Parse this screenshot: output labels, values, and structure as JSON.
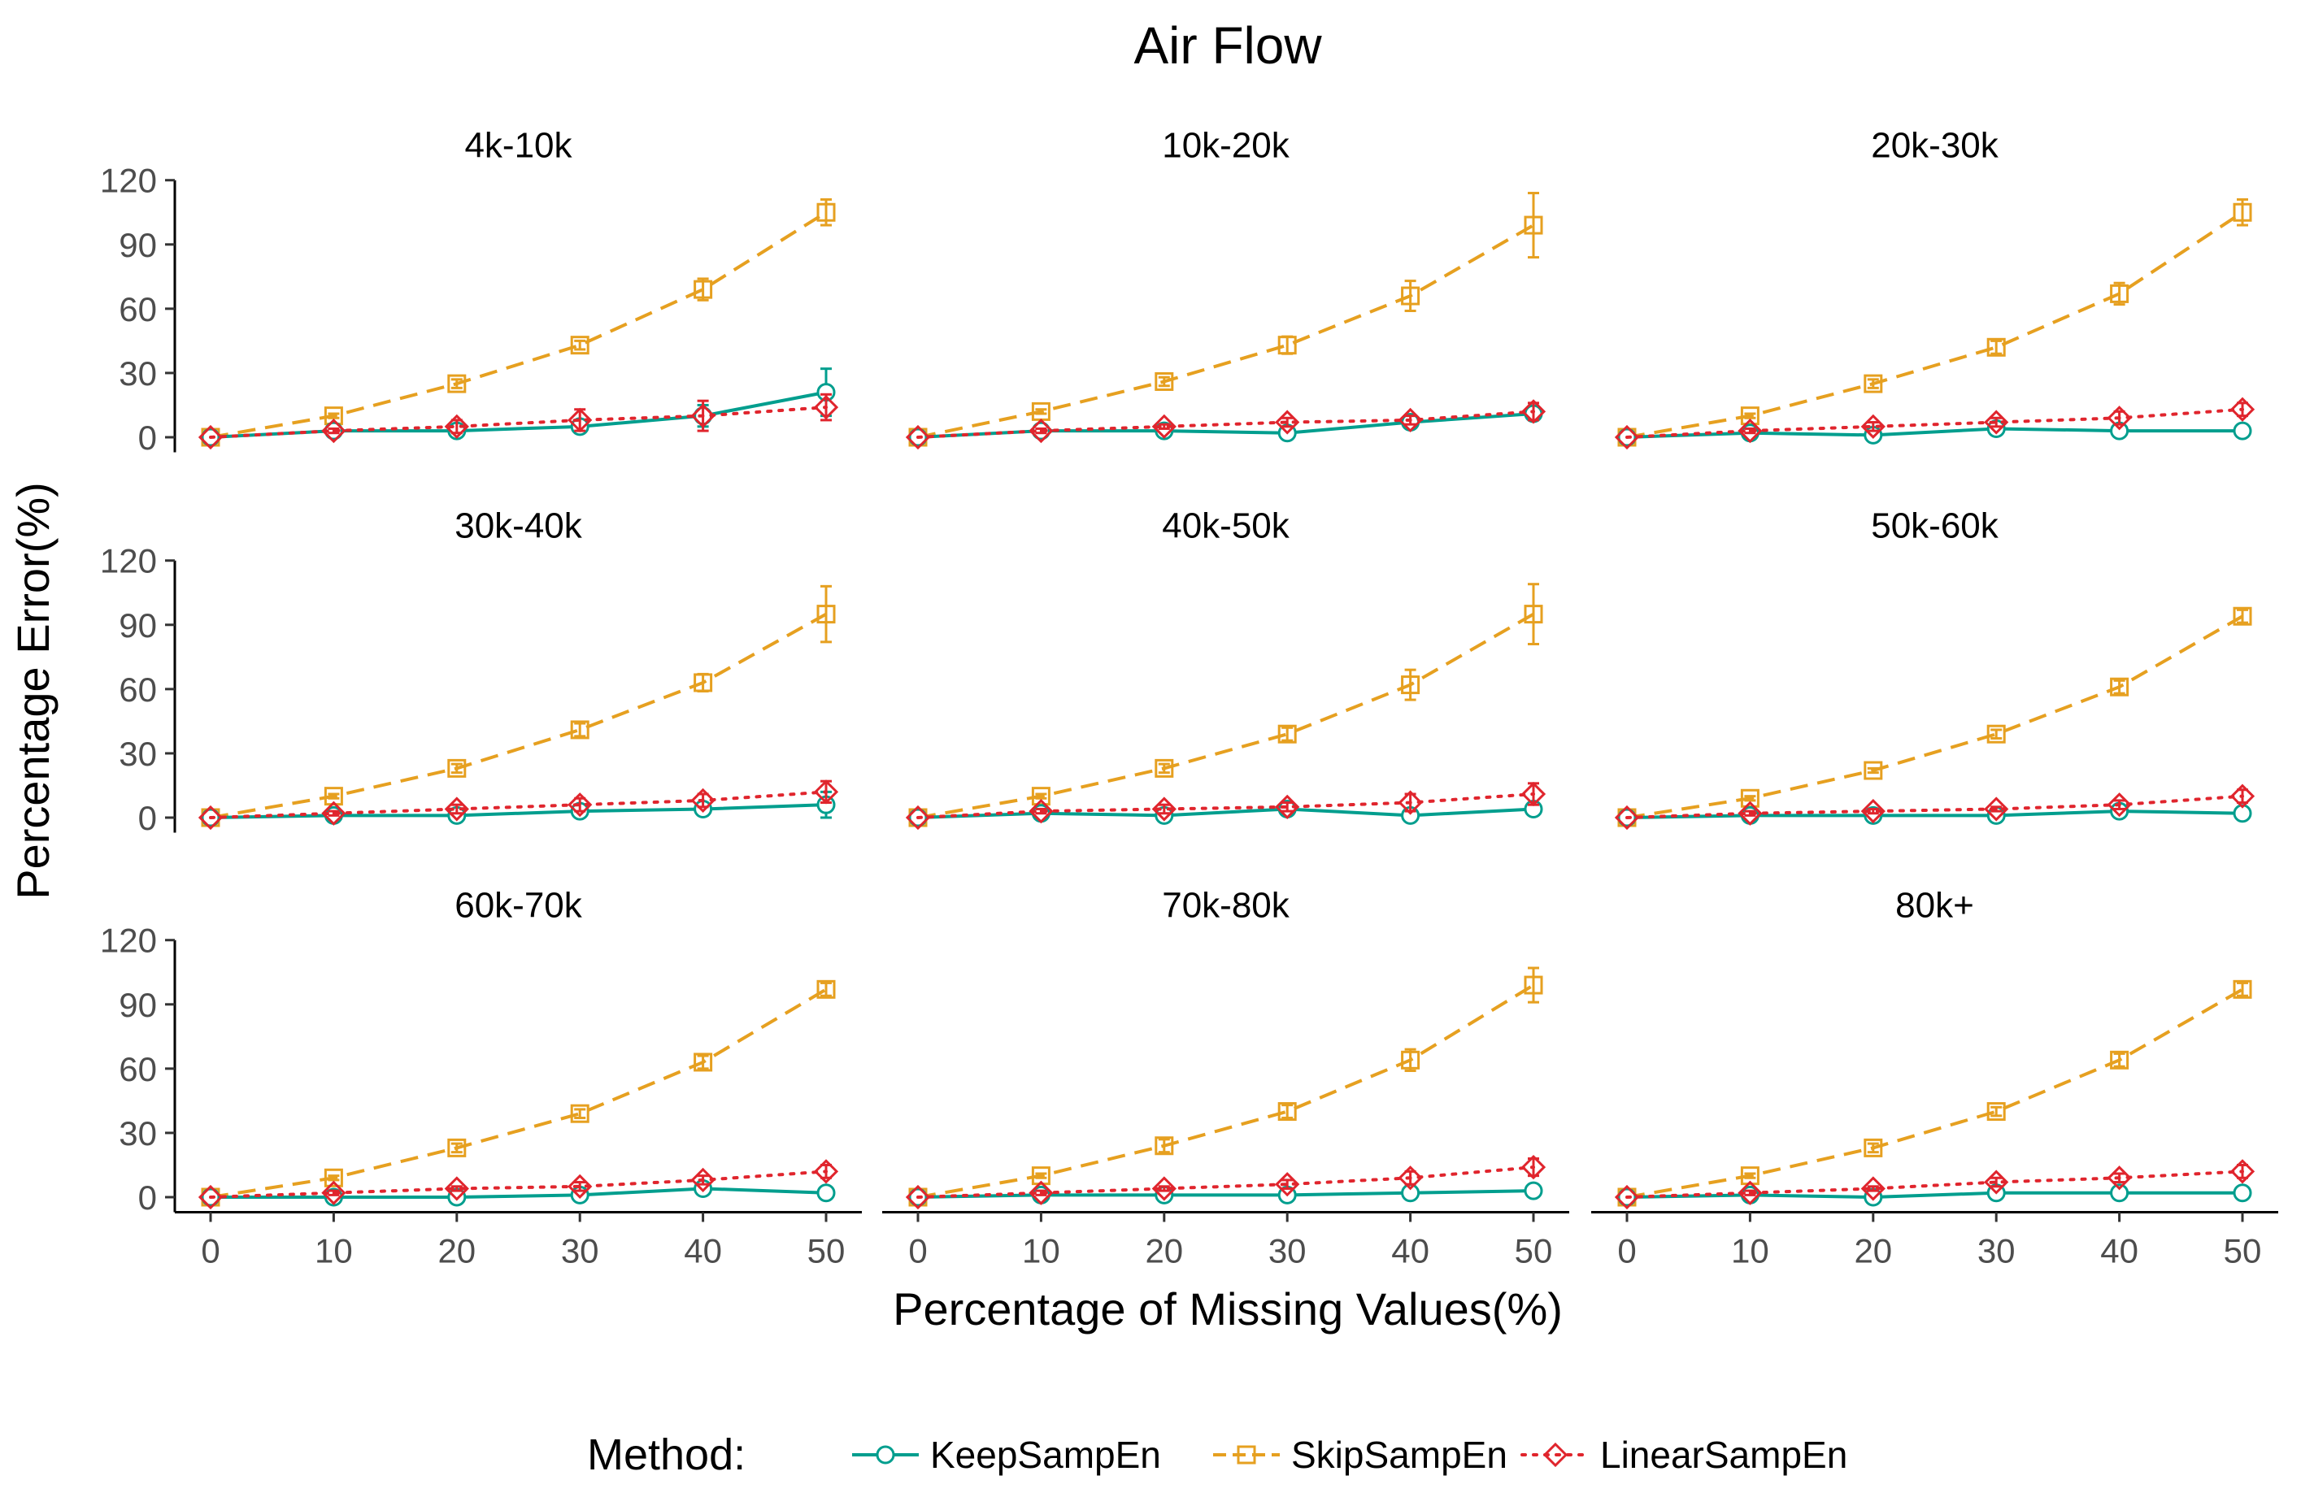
{
  "chart_data": {
    "type": "line",
    "title": "Air Flow",
    "xlabel": "Percentage of Missing Values(%)",
    "ylabel": "Percentage Error(%)",
    "x": [
      0,
      10,
      20,
      30,
      40,
      50
    ],
    "xticks": [
      0,
      10,
      20,
      30,
      40,
      50
    ],
    "yticks": [
      0,
      30,
      60,
      90,
      120
    ],
    "xlim": [
      -3,
      53
    ],
    "ylim": [
      -7,
      122
    ],
    "legend": {
      "title": "Method:",
      "position": "bottom",
      "entries": [
        "KeepSampEn",
        "SkipSampEn",
        "LinearSampEn"
      ]
    },
    "series_styles": [
      {
        "name": "KeepSampEn",
        "color": "#009E8E",
        "dash": "solid",
        "marker": "circle"
      },
      {
        "name": "SkipSampEn",
        "color": "#E6A020",
        "dash": "dashed",
        "marker": "square"
      },
      {
        "name": "LinearSampEn",
        "color": "#E0252D",
        "dash": "dotted",
        "marker": "diamond"
      }
    ],
    "panels": [
      {
        "title": "4k-10k",
        "series": [
          {
            "name": "KeepSampEn",
            "values": [
              0,
              3,
              3,
              5,
              10,
              21
            ],
            "errors": [
              0,
              1,
              1,
              2,
              5,
              11
            ]
          },
          {
            "name": "SkipSampEn",
            "values": [
              0,
              10,
              25,
              43,
              69,
              105
            ],
            "errors": [
              0,
              1,
              2,
              2,
              5,
              6
            ]
          },
          {
            "name": "LinearSampEn",
            "values": [
              0,
              3,
              5,
              8,
              10,
              14
            ],
            "errors": [
              0,
              1,
              3,
              5,
              7,
              6
            ]
          }
        ]
      },
      {
        "title": "10k-20k",
        "series": [
          {
            "name": "KeepSampEn",
            "values": [
              0,
              3,
              3,
              2,
              7,
              11
            ],
            "errors": [
              0,
              1,
              1,
              1,
              2,
              3
            ]
          },
          {
            "name": "SkipSampEn",
            "values": [
              0,
              12,
              26,
              43,
              66,
              99
            ],
            "errors": [
              0,
              1,
              2,
              4,
              7,
              15
            ]
          },
          {
            "name": "LinearSampEn",
            "values": [
              0,
              3,
              5,
              7,
              8,
              12
            ],
            "errors": [
              0,
              1,
              1,
              2,
              2,
              4
            ]
          }
        ]
      },
      {
        "title": "20k-30k",
        "series": [
          {
            "name": "KeepSampEn",
            "values": [
              0,
              2,
              1,
              4,
              3,
              3
            ],
            "errors": [
              0,
              1,
              1,
              1,
              1,
              1
            ]
          },
          {
            "name": "SkipSampEn",
            "values": [
              0,
              10,
              25,
              42,
              67,
              105
            ],
            "errors": [
              0,
              1,
              2,
              3,
              5,
              6
            ]
          },
          {
            "name": "LinearSampEn",
            "values": [
              0,
              3,
              5,
              7,
              9,
              13
            ],
            "errors": [
              0,
              1,
              2,
              2,
              3,
              3
            ]
          }
        ]
      },
      {
        "title": "30k-40k",
        "series": [
          {
            "name": "KeepSampEn",
            "values": [
              0,
              1,
              1,
              3,
              4,
              6
            ],
            "errors": [
              0,
              1,
              1,
              1,
              3,
              6
            ]
          },
          {
            "name": "SkipSampEn",
            "values": [
              0,
              10,
              23,
              41,
              63,
              95
            ],
            "errors": [
              0,
              1,
              2,
              3,
              4,
              13
            ]
          },
          {
            "name": "LinearSampEn",
            "values": [
              0,
              2,
              4,
              6,
              8,
              12
            ],
            "errors": [
              0,
              1,
              2,
              3,
              3,
              5
            ]
          }
        ]
      },
      {
        "title": "40k-50k",
        "series": [
          {
            "name": "KeepSampEn",
            "values": [
              0,
              2,
              1,
              4,
              1,
              4
            ],
            "errors": [
              0,
              1,
              1,
              1,
              1,
              2
            ]
          },
          {
            "name": "SkipSampEn",
            "values": [
              0,
              10,
              23,
              39,
              62,
              95
            ],
            "errors": [
              0,
              1,
              2,
              3,
              7,
              14
            ]
          },
          {
            "name": "LinearSampEn",
            "values": [
              0,
              3,
              4,
              5,
              7,
              11
            ],
            "errors": [
              0,
              1,
              2,
              2,
              4,
              5
            ]
          }
        ]
      },
      {
        "title": "50k-60k",
        "series": [
          {
            "name": "KeepSampEn",
            "values": [
              0,
              1,
              1,
              1,
              3,
              2
            ],
            "errors": [
              0,
              1,
              1,
              1,
              3,
              1
            ]
          },
          {
            "name": "SkipSampEn",
            "values": [
              0,
              9,
              22,
              39,
              61,
              94
            ],
            "errors": [
              0,
              1,
              1,
              2,
              3,
              3
            ]
          },
          {
            "name": "LinearSampEn",
            "values": [
              0,
              2,
              3,
              4,
              6,
              10
            ],
            "errors": [
              0,
              1,
              1,
              1,
              2,
              3
            ]
          }
        ]
      },
      {
        "title": "60k-70k",
        "series": [
          {
            "name": "KeepSampEn",
            "values": [
              0,
              0,
              0,
              1,
              4,
              2
            ],
            "errors": [
              0,
              1,
              1,
              1,
              2,
              1
            ]
          },
          {
            "name": "SkipSampEn",
            "values": [
              0,
              9,
              23,
              39,
              63,
              97
            ],
            "errors": [
              0,
              1,
              2,
              2,
              3,
              3
            ]
          },
          {
            "name": "LinearSampEn",
            "values": [
              0,
              2,
              4,
              5,
              8,
              12
            ],
            "errors": [
              0,
              1,
              1,
              2,
              2,
              3
            ]
          }
        ]
      },
      {
        "title": "70k-80k",
        "series": [
          {
            "name": "KeepSampEn",
            "values": [
              0,
              1,
              1,
              1,
              2,
              3
            ],
            "errors": [
              0,
              1,
              1,
              1,
              1,
              1
            ]
          },
          {
            "name": "SkipSampEn",
            "values": [
              0,
              10,
              24,
              40,
              64,
              99
            ],
            "errors": [
              0,
              1,
              3,
              3,
              5,
              8
            ]
          },
          {
            "name": "LinearSampEn",
            "values": [
              0,
              2,
              4,
              6,
              9,
              14
            ],
            "errors": [
              0,
              1,
              1,
              2,
              3,
              4
            ]
          }
        ]
      },
      {
        "title": "80k+",
        "series": [
          {
            "name": "KeepSampEn",
            "values": [
              0,
              1,
              0,
              2,
              2,
              2
            ],
            "errors": [
              0,
              1,
              1,
              1,
              1,
              1
            ]
          },
          {
            "name": "SkipSampEn",
            "values": [
              0,
              10,
              23,
              40,
              64,
              97
            ],
            "errors": [
              0,
              1,
              2,
              2,
              3,
              3
            ]
          },
          {
            "name": "LinearSampEn",
            "values": [
              0,
              2,
              4,
              7,
              9,
              12
            ],
            "errors": [
              0,
              1,
              1,
              2,
              2,
              3
            ]
          }
        ]
      }
    ]
  }
}
